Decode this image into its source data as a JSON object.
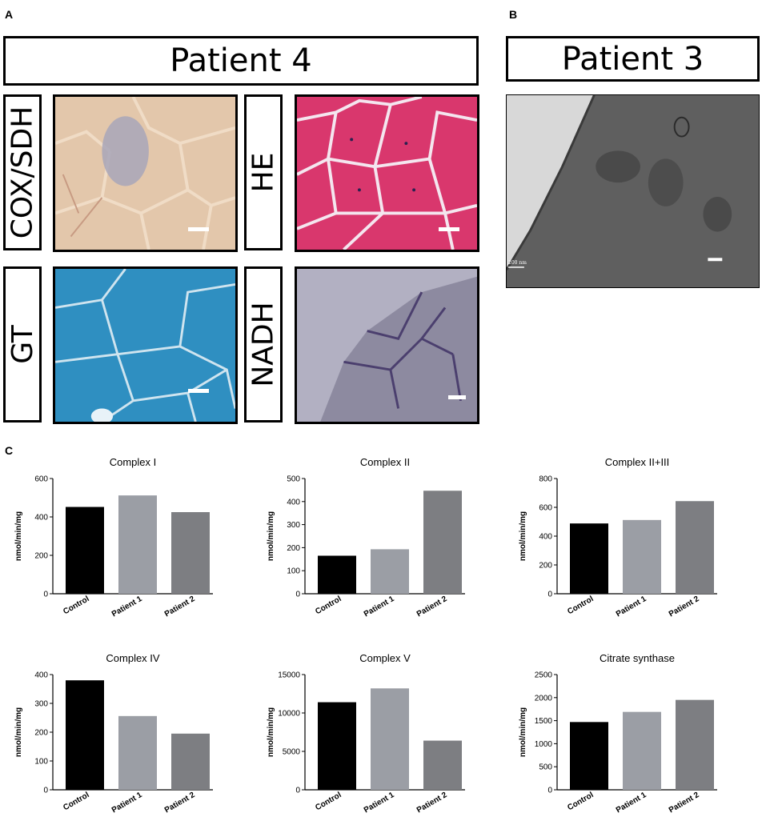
{
  "panels": {
    "a_letter": "A",
    "b_letter": "B",
    "c_letter": "C",
    "patient4_title": "Patient 4",
    "patient3_title": "Patient 3",
    "stain_labels": [
      "COX/SDH",
      "HE",
      "GT",
      "NADH"
    ],
    "em_scale_text": "200 nm"
  },
  "colors": {
    "control": "#000000",
    "patient1": "#9b9ea5",
    "patient2": "#7d7e82",
    "cox_bg": "#e3c7ab",
    "he_bg": "#d9376d",
    "gt_bg": "#2f8fc1",
    "nadh_bg": "#b2b0c2",
    "em_bg": "#6a6a6a"
  },
  "chart_data": [
    {
      "type": "bar",
      "title": "Complex I",
      "categories": [
        "Control",
        "Patient 1",
        "Patient 2"
      ],
      "values": [
        452,
        512,
        425
      ],
      "ylabel": "nmol/min/mg",
      "ylim": [
        0,
        600
      ],
      "yticks": [
        0,
        200,
        400,
        600
      ],
      "ytick_labels": [
        "0",
        "200",
        "400",
        "600"
      ]
    },
    {
      "type": "bar",
      "title": "Complex II",
      "categories": [
        "Control",
        "Patient 1",
        "Patient 2"
      ],
      "values": [
        165,
        193,
        447
      ],
      "ylabel": "nmol/min/mg",
      "ylim": [
        0,
        500
      ],
      "yticks": [
        0,
        100,
        200,
        300,
        400,
        500
      ],
      "ytick_labels": [
        "0",
        "100",
        "200",
        "300",
        "400",
        "500"
      ]
    },
    {
      "type": "bar",
      "title": "Complex  II+III",
      "categories": [
        "Control",
        "Patient 1",
        "Patient 2"
      ],
      "values": [
        488,
        512,
        643
      ],
      "ylabel": "nmol/min/mg",
      "ylim": [
        0,
        800
      ],
      "yticks": [
        0,
        200,
        400,
        600,
        800
      ],
      "ytick_labels": [
        "0",
        "200",
        "400",
        "600",
        "800"
      ]
    },
    {
      "type": "bar",
      "title": "Complex IV",
      "categories": [
        "Control",
        "Patient 1",
        "Patient 2"
      ],
      "values": [
        380,
        256,
        195
      ],
      "ylabel": "nmol/min/mg",
      "ylim": [
        0,
        400
      ],
      "yticks": [
        0,
        100,
        200,
        300,
        400
      ],
      "ytick_labels": [
        "0",
        "100",
        "200",
        "300",
        "400"
      ]
    },
    {
      "type": "bar",
      "title": "Complex V",
      "categories": [
        "Control",
        "Patient 1",
        "Patient 2"
      ],
      "values": [
        11400,
        13200,
        6400
      ],
      "ylabel": "nmol/min/mg",
      "ylim": [
        0,
        15000
      ],
      "yticks": [
        0,
        5000,
        10000,
        15000
      ],
      "ytick_labels": [
        "0",
        "5000",
        "10000",
        "15000"
      ]
    },
    {
      "type": "bar",
      "title": "Citrate synthase",
      "categories": [
        "Control",
        "Patient 1",
        "Patient 2"
      ],
      "values": [
        1470,
        1690,
        1950
      ],
      "ylabel": "nmol/min/mg",
      "ylim": [
        0,
        2500
      ],
      "yticks": [
        0,
        500,
        1000,
        1500,
        2000,
        2500
      ],
      "ytick_labels": [
        "0",
        "500",
        "1000",
        "1500",
        "2000",
        "2500"
      ]
    }
  ]
}
